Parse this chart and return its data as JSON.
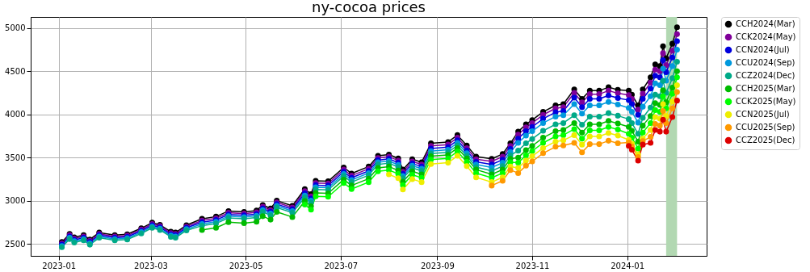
{
  "chart_data": {
    "type": "line",
    "title": "ny-cocoa prices",
    "x": [
      "2023-01-03",
      "2023-01-08",
      "2023-01-11",
      "2023-01-17",
      "2023-01-21",
      "2023-01-27",
      "2023-02-06",
      "2023-02-14",
      "2023-02-23",
      "2023-03-02",
      "2023-03-07",
      "2023-03-14",
      "2023-03-17",
      "2023-03-24",
      "2023-04-03",
      "2023-04-12",
      "2023-04-20",
      "2023-04-30",
      "2023-05-08",
      "2023-05-12",
      "2023-05-17",
      "2023-05-21",
      "2023-05-31",
      "2023-06-08",
      "2023-06-12",
      "2023-06-15",
      "2023-06-23",
      "2023-07-03",
      "2023-07-08",
      "2023-07-19",
      "2023-07-25",
      "2023-08-01",
      "2023-08-07",
      "2023-08-10",
      "2023-08-16",
      "2023-08-22",
      "2023-08-28",
      "2023-09-08",
      "2023-09-14",
      "2023-09-20",
      "2023-09-26",
      "2023-10-06",
      "2023-10-13",
      "2023-10-18",
      "2023-10-23",
      "2023-10-28",
      "2023-11-01",
      "2023-11-08",
      "2023-11-16",
      "2023-11-21",
      "2023-11-28",
      "2023-12-03",
      "2023-12-08",
      "2023-12-14",
      "2023-12-20",
      "2023-12-26",
      "2024-01-02",
      "2024-01-04",
      "2024-01-08",
      "2024-01-11",
      "2024-01-16",
      "2024-01-19",
      "2024-01-22",
      "2024-01-24",
      "2024-01-26",
      "2024-01-30",
      "2024-02-02"
    ],
    "series": [
      {
        "name": "CCH2024(Mar)",
        "color": "#000000",
        "values": [
          2520,
          2615,
          2575,
          2600,
          2550,
          2630,
          2600,
          2610,
          2680,
          2745,
          2720,
          2640,
          2630,
          2715,
          2790,
          2815,
          2880,
          2870,
          2885,
          2950,
          2910,
          3000,
          2940,
          3135,
          3075,
          3230,
          3225,
          3385,
          3315,
          3395,
          3520,
          3535,
          3490,
          3360,
          3480,
          3445,
          3665,
          3680,
          3760,
          3640,
          3510,
          3485,
          3540,
          3665,
          3800,
          3885,
          3935,
          4030,
          4105,
          4120,
          4290,
          4180,
          4275,
          4275,
          4315,
          4285,
          4275,
          4230,
          4105,
          4290,
          4430,
          4580,
          4560,
          4790,
          4650,
          4820,
          5010
        ]
      },
      {
        "name": "CCK2024(May)",
        "color": "#800099",
        "values": [
          2505,
          2600,
          2560,
          2585,
          2535,
          2615,
          2585,
          2595,
          2665,
          2730,
          2705,
          2625,
          2615,
          2700,
          2770,
          2795,
          2860,
          2850,
          2865,
          2930,
          2890,
          2980,
          2920,
          3110,
          3050,
          3205,
          3200,
          3360,
          3290,
          3370,
          3495,
          3510,
          3465,
          3335,
          3455,
          3420,
          3635,
          3650,
          3730,
          3610,
          3480,
          3455,
          3510,
          3635,
          3765,
          3850,
          3900,
          3995,
          4070,
          4085,
          4250,
          4140,
          4235,
          4235,
          4275,
          4245,
          4225,
          4180,
          4055,
          4240,
          4370,
          4520,
          4500,
          4710,
          4570,
          4740,
          4930
        ]
      },
      {
        "name": "CCN2024(Jul)",
        "color": "#0000dd",
        "values": [
          2490,
          2585,
          2545,
          2570,
          2520,
          2600,
          2570,
          2580,
          2650,
          2715,
          2690,
          2610,
          2600,
          2685,
          2750,
          2775,
          2840,
          2830,
          2845,
          2910,
          2870,
          2960,
          2900,
          3085,
          3025,
          3180,
          3175,
          3335,
          3265,
          3345,
          3470,
          3485,
          3440,
          3310,
          3430,
          3395,
          3605,
          3620,
          3700,
          3580,
          3450,
          3420,
          3475,
          3600,
          3720,
          3805,
          3855,
          3950,
          4025,
          4040,
          4195,
          4085,
          4180,
          4180,
          4220,
          4190,
          4165,
          4120,
          3995,
          4180,
          4300,
          4450,
          4430,
          4630,
          4490,
          4660,
          4850
        ]
      },
      {
        "name": "CCU2024(Sep)",
        "color": "#0099dd",
        "values": [
          2475,
          2570,
          2530,
          2555,
          2505,
          2585,
          2555,
          2565,
          2635,
          2700,
          2675,
          2595,
          2585,
          2670,
          2730,
          2755,
          2820,
          2810,
          2825,
          2890,
          2850,
          2940,
          2880,
          3060,
          3000,
          3155,
          3150,
          3310,
          3240,
          3320,
          3445,
          3460,
          3415,
          3285,
          3405,
          3370,
          3575,
          3590,
          3670,
          3550,
          3420,
          3385,
          3440,
          3565,
          3670,
          3755,
          3805,
          3900,
          3975,
          3990,
          4120,
          4010,
          4105,
          4105,
          4145,
          4115,
          4075,
          4030,
          3905,
          4090,
          4210,
          4360,
          4340,
          4530,
          4390,
          4560,
          4750
        ]
      },
      {
        "name": "CCZ2024(Dec)",
        "color": "#00aa88",
        "values": [
          2460,
          2555,
          2515,
          2540,
          2490,
          2570,
          2540,
          2550,
          2620,
          2685,
          2660,
          2580,
          2570,
          2655,
          2710,
          2735,
          2800,
          2790,
          2805,
          2870,
          2830,
          2920,
          2860,
          3035,
          2975,
          3130,
          3125,
          3285,
          3215,
          3295,
          3420,
          3435,
          3390,
          3260,
          3380,
          3345,
          3545,
          3560,
          3640,
          3520,
          3390,
          3345,
          3400,
          3525,
          3580,
          3665,
          3715,
          3810,
          3885,
          3900,
          3990,
          3880,
          3975,
          3975,
          4015,
          3985,
          3945,
          3900,
          3775,
          3960,
          4080,
          4230,
          4210,
          4390,
          4250,
          4420,
          4610
        ]
      },
      {
        "name": "CCH2025(Mar)",
        "color": "#00bb00",
        "values": [
          null,
          null,
          null,
          null,
          null,
          null,
          null,
          null,
          null,
          null,
          null,
          null,
          null,
          null,
          2660,
          2685,
          2750,
          2740,
          2755,
          2820,
          2780,
          2870,
          2810,
          2995,
          2935,
          3090,
          3085,
          3245,
          3175,
          3255,
          3380,
          3395,
          3350,
          3220,
          3340,
          3305,
          3515,
          3530,
          3610,
          3490,
          3360,
          3305,
          3360,
          3485,
          3500,
          3585,
          3635,
          3730,
          3805,
          3820,
          3900,
          3790,
          3885,
          3885,
          3925,
          3895,
          3855,
          3810,
          3685,
          3870,
          3980,
          4130,
          4110,
          4280,
          4140,
          4310,
          4500
        ]
      },
      {
        "name": "CCK2025(May)",
        "color": "#00ff00",
        "values": [
          null,
          null,
          null,
          null,
          null,
          null,
          null,
          null,
          null,
          null,
          null,
          null,
          null,
          null,
          null,
          null,
          null,
          null,
          null,
          null,
          null,
          null,
          null,
          2955,
          2895,
          3050,
          3045,
          3205,
          3135,
          3215,
          3340,
          3355,
          3310,
          3180,
          3300,
          3265,
          3475,
          3490,
          3570,
          3450,
          3320,
          3265,
          3320,
          3445,
          3440,
          3525,
          3575,
          3670,
          3745,
          3760,
          3830,
          3720,
          3815,
          3815,
          3855,
          3825,
          3775,
          3730,
          3605,
          3790,
          3900,
          4050,
          4030,
          4210,
          4070,
          4240,
          4430
        ]
      },
      {
        "name": "CCN2025(Jul)",
        "color": "#eeee00",
        "values": [
          null,
          null,
          null,
          null,
          null,
          null,
          null,
          null,
          null,
          null,
          null,
          null,
          null,
          null,
          null,
          null,
          null,
          null,
          null,
          null,
          null,
          null,
          null,
          null,
          null,
          null,
          null,
          null,
          null,
          null,
          null,
          3305,
          3260,
          3130,
          3250,
          3215,
          3425,
          3440,
          3520,
          3400,
          3270,
          3215,
          3270,
          3395,
          3380,
          3465,
          3515,
          3610,
          3685,
          3700,
          3760,
          3650,
          3745,
          3745,
          3785,
          3755,
          3705,
          3660,
          3535,
          3720,
          3820,
          3970,
          3950,
          4120,
          3980,
          4150,
          4340
        ]
      },
      {
        "name": "CCU2025(Sep)",
        "color": "#ff9900",
        "values": [
          null,
          null,
          null,
          null,
          null,
          null,
          null,
          null,
          null,
          null,
          null,
          null,
          null,
          null,
          null,
          null,
          null,
          null,
          null,
          null,
          null,
          null,
          null,
          null,
          null,
          null,
          null,
          null,
          null,
          null,
          null,
          null,
          null,
          null,
          null,
          null,
          null,
          null,
          null,
          null,
          null,
          3175,
          3230,
          3355,
          3320,
          3405,
          3455,
          3550,
          3625,
          3640,
          3670,
          3560,
          3655,
          3655,
          3695,
          3665,
          3675,
          3630,
          3505,
          3690,
          3740,
          3890,
          3870,
          4040,
          3900,
          4070,
          4260
        ]
      },
      {
        "name": "CCZ2025(Dec)",
        "color": "#dd0000",
        "values": [
          null,
          null,
          null,
          null,
          null,
          null,
          null,
          null,
          null,
          null,
          null,
          null,
          null,
          null,
          null,
          null,
          null,
          null,
          null,
          null,
          null,
          null,
          null,
          null,
          null,
          null,
          null,
          null,
          null,
          null,
          null,
          null,
          null,
          null,
          null,
          null,
          null,
          null,
          null,
          null,
          null,
          null,
          null,
          null,
          null,
          null,
          null,
          null,
          null,
          null,
          null,
          null,
          null,
          null,
          null,
          null,
          3635,
          3590,
          3465,
          3650,
          3670,
          3820,
          3800,
          3940,
          3800,
          3970,
          4160
        ]
      }
    ],
    "xlim": [
      "2022-12-14",
      "2024-02-21"
    ],
    "xticks": [
      "2023-01",
      "2023-03",
      "2023-05",
      "2023-07",
      "2023-09",
      "2023-11",
      "2024-01"
    ],
    "ylim": [
      2360,
      5130
    ],
    "yticks": [
      2500,
      3000,
      3500,
      4000,
      4500,
      5000
    ],
    "bands": [
      {
        "axis": "x",
        "from": "2024-01-26",
        "to": "2024-02-02",
        "color": "#b2d8b2"
      }
    ],
    "grid": true,
    "legend": "top right",
    "marker": "circle",
    "line_style": "solid"
  }
}
